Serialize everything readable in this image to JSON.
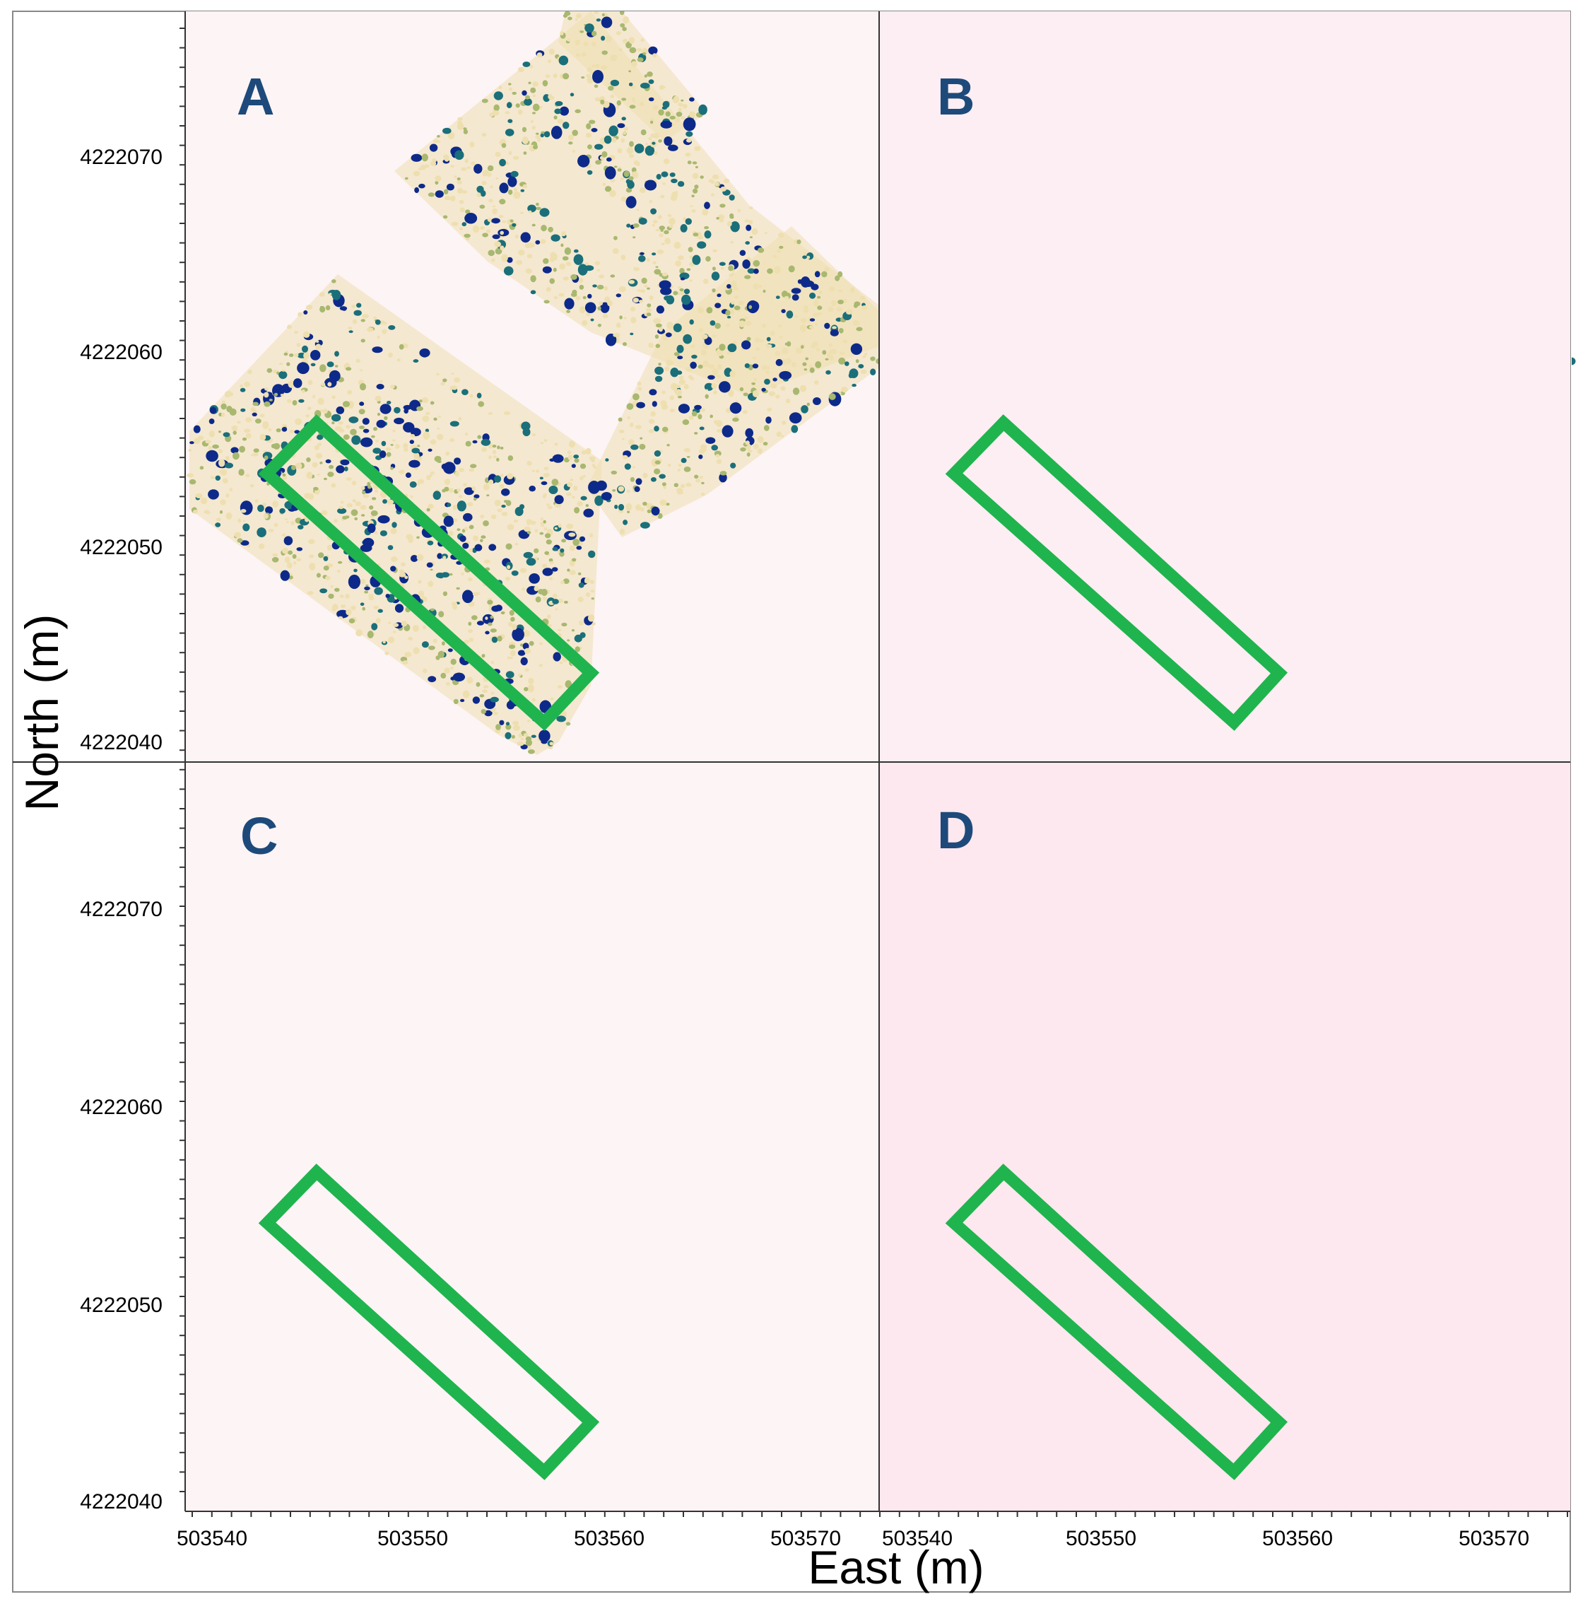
{
  "figure": {
    "axes": {
      "x_title": "East (m)",
      "y_title": "North (m)",
      "x_ticks": [
        "503540",
        "503550",
        "503560",
        "503570"
      ],
      "y_ticks": [
        "4222070",
        "4222060",
        "4222050",
        "4222040"
      ]
    },
    "panels": [
      {
        "letter": "A",
        "background": "#fdf4f5",
        "speck_density": 0.95,
        "blue_ratio": 0.25
      },
      {
        "letter": "B",
        "background": "#fceef2",
        "speck_density": 0.9,
        "blue_ratio": 0.45
      },
      {
        "letter": "C",
        "background": "#fdf4f5",
        "speck_density": 0.8,
        "blue_ratio": 0.5
      },
      {
        "letter": "D",
        "background": "#fce8ee",
        "speck_density": 0.55,
        "blue_ratio": 0.65
      }
    ],
    "colors": {
      "highlight_box": "#1fb44e",
      "dark_blue": "#0d2a8a",
      "teal": "#1a6f7a",
      "olive": "#a8b870",
      "tan": "#eedfb0",
      "panel_letter": "#1d4a7a"
    }
  }
}
